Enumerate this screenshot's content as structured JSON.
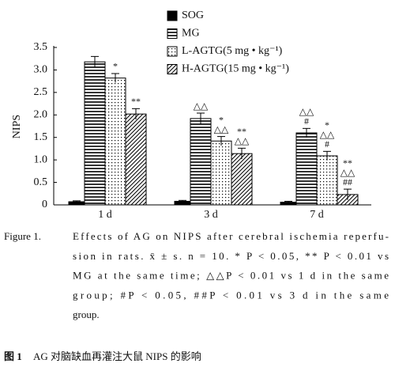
{
  "chart_data": {
    "type": "bar",
    "y_label": "NIPS",
    "categories": [
      "1 d",
      "3 d",
      "7 d"
    ],
    "series": [
      {
        "name": "SOG",
        "color": "#000000",
        "pattern": "solid",
        "values": [
          0.07,
          0.08,
          0.06
        ],
        "errors": [
          0.02,
          0.02,
          0.02
        ],
        "marks": [
          null,
          null,
          null
        ]
      },
      {
        "name": "MG",
        "color": "#000000",
        "pattern": "horizontal",
        "values": [
          3.18,
          1.92,
          1.6
        ],
        "errors": [
          0.12,
          0.12,
          0.1
        ],
        "marks": [
          null,
          [
            "△△"
          ],
          [
            "△△",
            "#"
          ]
        ]
      },
      {
        "name": "L-AGTG(5 mg • kg⁻¹)",
        "color": "#000000",
        "pattern": "dots",
        "values": [
          2.82,
          1.42,
          1.09
        ],
        "errors": [
          0.1,
          0.1,
          0.1
        ],
        "marks": [
          [
            "*"
          ],
          [
            "*",
            "△△"
          ],
          [
            "*",
            "△△",
            "#"
          ]
        ]
      },
      {
        "name": "H-AGTG(15 mg • kg⁻¹)",
        "color": "#000000",
        "pattern": "diagonal",
        "values": [
          2.02,
          1.14,
          0.23
        ],
        "errors": [
          0.12,
          0.12,
          0.12
        ],
        "marks": [
          [
            "**"
          ],
          [
            "**",
            "△△"
          ],
          [
            "**",
            "△△",
            "##"
          ]
        ]
      }
    ],
    "ylim": [
      0,
      3.5
    ],
    "yticks": [
      0,
      0.5,
      {
        "value": 1,
        "label": "1.0"
      },
      1.5,
      {
        "value": 2,
        "label": "2.0"
      },
      2.5,
      {
        "value": 3,
        "label": "3.0"
      },
      3.5
    ]
  },
  "caption": {
    "label": "Figure 1.",
    "lines": [
      "Effects of AG on NIPS after cerebral ischemia reperfu-",
      "sion in rats. x̄ ± s. n = 10. * P < 0.05, ** P < 0.01 vs",
      "MG at the same time; △△P < 0.01 vs 1 d in the same",
      "group; #P < 0.05, ##P < 0.01 vs 3 d in the same",
      "group."
    ],
    "cn_label": "图 1",
    "cn_text": "AG 对脑缺血再灌注大鼠 NIPS 的影响"
  }
}
